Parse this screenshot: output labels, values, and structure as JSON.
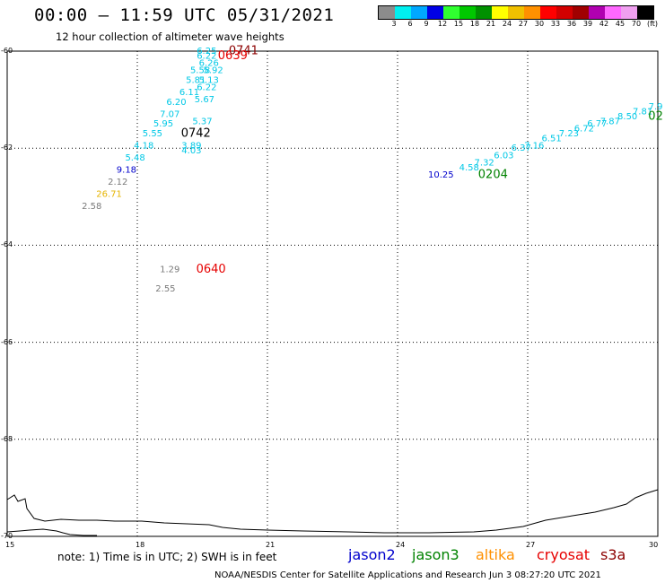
{
  "header": {
    "title": "00:00 – 11:59 UTC 05/31/2021",
    "subtitle": "12 hour collection of altimeter wave heights"
  },
  "scale": {
    "colors": [
      "#8c8c8c",
      "#00f0f0",
      "#00a8ff",
      "#0000e6",
      "#30ff30",
      "#00c800",
      "#009000",
      "#ffff00",
      "#f0c000",
      "#ff9000",
      "#ff0000",
      "#d20000",
      "#a00000",
      "#b000b0",
      "#ff68ff",
      "#f0a0f0",
      "#000000"
    ],
    "labels": [
      "3",
      "6",
      "9",
      "12",
      "15",
      "18",
      "21",
      "24",
      "27",
      "30",
      "33",
      "36",
      "39",
      "42",
      "45",
      "70",
      "(ft)"
    ]
  },
  "map": {
    "lat_labels": [
      "-60",
      "-62",
      "-64",
      "-66",
      "-68",
      "-70"
    ],
    "lon_labels": [
      "15",
      "18",
      "21",
      "24",
      "27",
      "30"
    ],
    "lat_values": [
      -60,
      -62,
      -64,
      -66,
      -68,
      -70
    ],
    "lon_values": [
      15,
      18,
      21,
      24,
      27,
      30
    ],
    "lon_range": [
      15,
      30
    ],
    "lat_range": [
      -60,
      -70
    ],
    "gridlines": true,
    "colors": {
      "cyan": "#00c8e6",
      "blue": "#0000cc",
      "green": "#008200",
      "red": "#e60000",
      "darkred": "#8c0000",
      "gray": "#7a7a7a",
      "gold": "#e6b400",
      "black": "#000000"
    }
  },
  "observations": [
    {
      "text": "0741",
      "lon": 20.45,
      "lat": -60.0,
      "color": "darkred",
      "big": true
    },
    {
      "text": "0639",
      "lon": 20.2,
      "lat": -60.1,
      "color": "red",
      "big": true
    },
    {
      "text": "6.25",
      "lon": 19.6,
      "lat": -60.0,
      "color": "cyan"
    },
    {
      "text": "6.22",
      "lon": 19.6,
      "lat": -60.1,
      "color": "cyan"
    },
    {
      "text": "6.26",
      "lon": 19.65,
      "lat": -60.25,
      "color": "cyan"
    },
    {
      "text": "5.92",
      "lon": 19.75,
      "lat": -60.4,
      "color": "cyan"
    },
    {
      "text": "5.58",
      "lon": 19.45,
      "lat": -60.4,
      "color": "cyan"
    },
    {
      "text": "5.13",
      "lon": 19.65,
      "lat": -60.6,
      "color": "cyan"
    },
    {
      "text": "5.81",
      "lon": 19.35,
      "lat": -60.6,
      "color": "cyan"
    },
    {
      "text": "6.22",
      "lon": 19.6,
      "lat": -60.75,
      "color": "cyan"
    },
    {
      "text": "6.11",
      "lon": 19.2,
      "lat": -60.85,
      "color": "cyan"
    },
    {
      "text": "5.67",
      "lon": 19.55,
      "lat": -61.0,
      "color": "cyan"
    },
    {
      "text": "6.20",
      "lon": 18.9,
      "lat": -61.05,
      "color": "cyan"
    },
    {
      "text": "7.07",
      "lon": 18.75,
      "lat": -61.3,
      "color": "cyan"
    },
    {
      "text": "5.37",
      "lon": 19.5,
      "lat": -61.45,
      "color": "cyan"
    },
    {
      "text": "5.95",
      "lon": 18.6,
      "lat": -61.5,
      "color": "cyan"
    },
    {
      "text": "5.55",
      "lon": 18.35,
      "lat": -61.7,
      "color": "cyan"
    },
    {
      "text": "0742",
      "lon": 19.35,
      "lat": -61.7,
      "color": "black",
      "big": true
    },
    {
      "text": "4.18",
      "lon": 18.15,
      "lat": -61.95,
      "color": "cyan"
    },
    {
      "text": "3.89",
      "lon": 19.25,
      "lat": -61.95,
      "color": "cyan"
    },
    {
      "text": "4.03",
      "lon": 19.25,
      "lat": -62.05,
      "color": "cyan"
    },
    {
      "text": "5.48",
      "lon": 17.95,
      "lat": -62.2,
      "color": "cyan"
    },
    {
      "text": "9.18",
      "lon": 17.75,
      "lat": -62.45,
      "color": "blue"
    },
    {
      "text": "2.12",
      "lon": 17.55,
      "lat": -62.7,
      "color": "gray"
    },
    {
      "text": "26.71",
      "lon": 17.35,
      "lat": -62.95,
      "color": "gold"
    },
    {
      "text": "2.58",
      "lon": 16.95,
      "lat": -63.2,
      "color": "gray"
    },
    {
      "text": "1.29",
      "lon": 18.75,
      "lat": -64.5,
      "color": "gray"
    },
    {
      "text": "0640",
      "lon": 19.7,
      "lat": -64.5,
      "color": "red",
      "big": true
    },
    {
      "text": "2.55",
      "lon": 18.65,
      "lat": -64.9,
      "color": "gray"
    },
    {
      "text": "10.25",
      "lon": 25.0,
      "lat": -62.55,
      "color": "blue"
    },
    {
      "text": "4.58",
      "lon": 25.65,
      "lat": -62.4,
      "color": "cyan"
    },
    {
      "text": "0204",
      "lon": 26.2,
      "lat": -62.55,
      "color": "green",
      "big": true
    },
    {
      "text": "7.32",
      "lon": 26.0,
      "lat": -62.3,
      "color": "cyan"
    },
    {
      "text": "6.03",
      "lon": 26.45,
      "lat": -62.15,
      "color": "cyan"
    },
    {
      "text": "6.37",
      "lon": 26.85,
      "lat": -62.0,
      "color": "cyan"
    },
    {
      "text": "7.16",
      "lon": 27.15,
      "lat": -61.95,
      "color": "cyan"
    },
    {
      "text": "6.51",
      "lon": 27.55,
      "lat": -61.8,
      "color": "cyan"
    },
    {
      "text": "7.23",
      "lon": 27.95,
      "lat": -61.7,
      "color": "cyan"
    },
    {
      "text": "6.72",
      "lon": 28.3,
      "lat": -61.6,
      "color": "cyan"
    },
    {
      "text": "6.77",
      "lon": 28.6,
      "lat": -61.5,
      "color": "cyan"
    },
    {
      "text": "7.87",
      "lon": 28.9,
      "lat": -61.45,
      "color": "cyan"
    },
    {
      "text": "8.50",
      "lon": 29.3,
      "lat": -61.35,
      "color": "cyan"
    },
    {
      "text": "7.81",
      "lon": 29.65,
      "lat": -61.25,
      "color": "cyan"
    },
    {
      "text": "7.9",
      "lon": 29.95,
      "lat": -61.15,
      "color": "cyan"
    },
    {
      "text": "02",
      "lon": 29.95,
      "lat": -61.35,
      "color": "green",
      "big": true
    }
  ],
  "legend": {
    "note": "note: 1) Time is in UTC; 2) SWH is in feet",
    "items": [
      {
        "label": "jason2",
        "color": "#0000cc"
      },
      {
        "label": "jason3",
        "color": "#008200"
      },
      {
        "label": "altika",
        "color": "#ff9000"
      },
      {
        "label": "cryosat",
        "color": "#e60000"
      },
      {
        "label": "s3a",
        "color": "#8c0000"
      }
    ]
  },
  "footer": "NOAA/NESDIS Center for Satellite Applications and Research    Jun  3 08:27:20 UTC 2021"
}
